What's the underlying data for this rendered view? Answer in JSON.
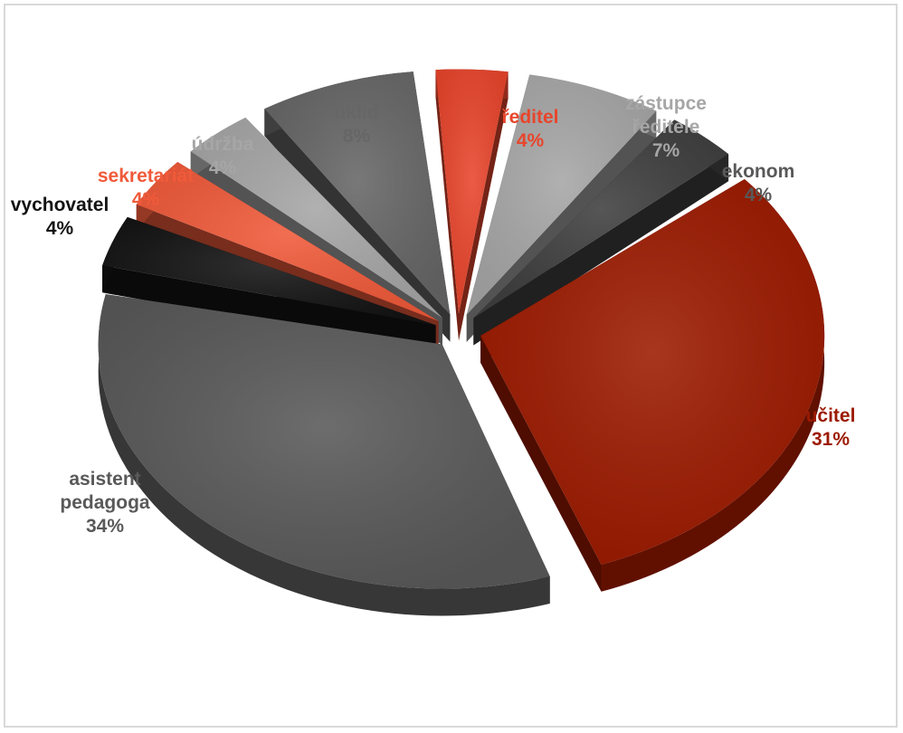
{
  "chart_data": {
    "type": "pie",
    "style": "3d-exploded",
    "slices": [
      {
        "label_lines": [
          "ředitel"
        ],
        "pct_label": "4%",
        "value": 4,
        "color": "#e8452c",
        "label_color": "#e8452c"
      },
      {
        "label_lines": [
          "zástupce",
          "ředitele"
        ],
        "pct_label": "7%",
        "value": 7,
        "color": "#a6a6a6",
        "label_color": "#a6a6a6"
      },
      {
        "label_lines": [
          "ekonom"
        ],
        "pct_label": "4%",
        "value": 4,
        "color": "#3f3f3f",
        "label_color": "#595959"
      },
      {
        "label_lines": [
          "učitel"
        ],
        "pct_label": "31%",
        "value": 31,
        "color": "#9c1a00",
        "label_color": "#9c1a00"
      },
      {
        "label_lines": [
          "asistent",
          "pedagoga"
        ],
        "pct_label": "34%",
        "value": 34,
        "color": "#595959",
        "label_color": "#595959"
      },
      {
        "label_lines": [
          "vychovatel"
        ],
        "pct_label": "4%",
        "value": 4,
        "color": "#141414",
        "label_color": "#141414"
      },
      {
        "label_lines": [
          "sekretariát"
        ],
        "pct_label": "4%",
        "value": 4,
        "color": "#f05a3a",
        "label_color": "#f05a3a"
      },
      {
        "label_lines": [
          "údržba"
        ],
        "pct_label": "4%",
        "value": 4,
        "color": "#a6a6a6",
        "label_color": "#a6a6a6"
      },
      {
        "label_lines": [
          "úklid"
        ],
        "pct_label": "8%",
        "value": 8,
        "color": "#666666",
        "label_color": "#666666"
      }
    ]
  }
}
